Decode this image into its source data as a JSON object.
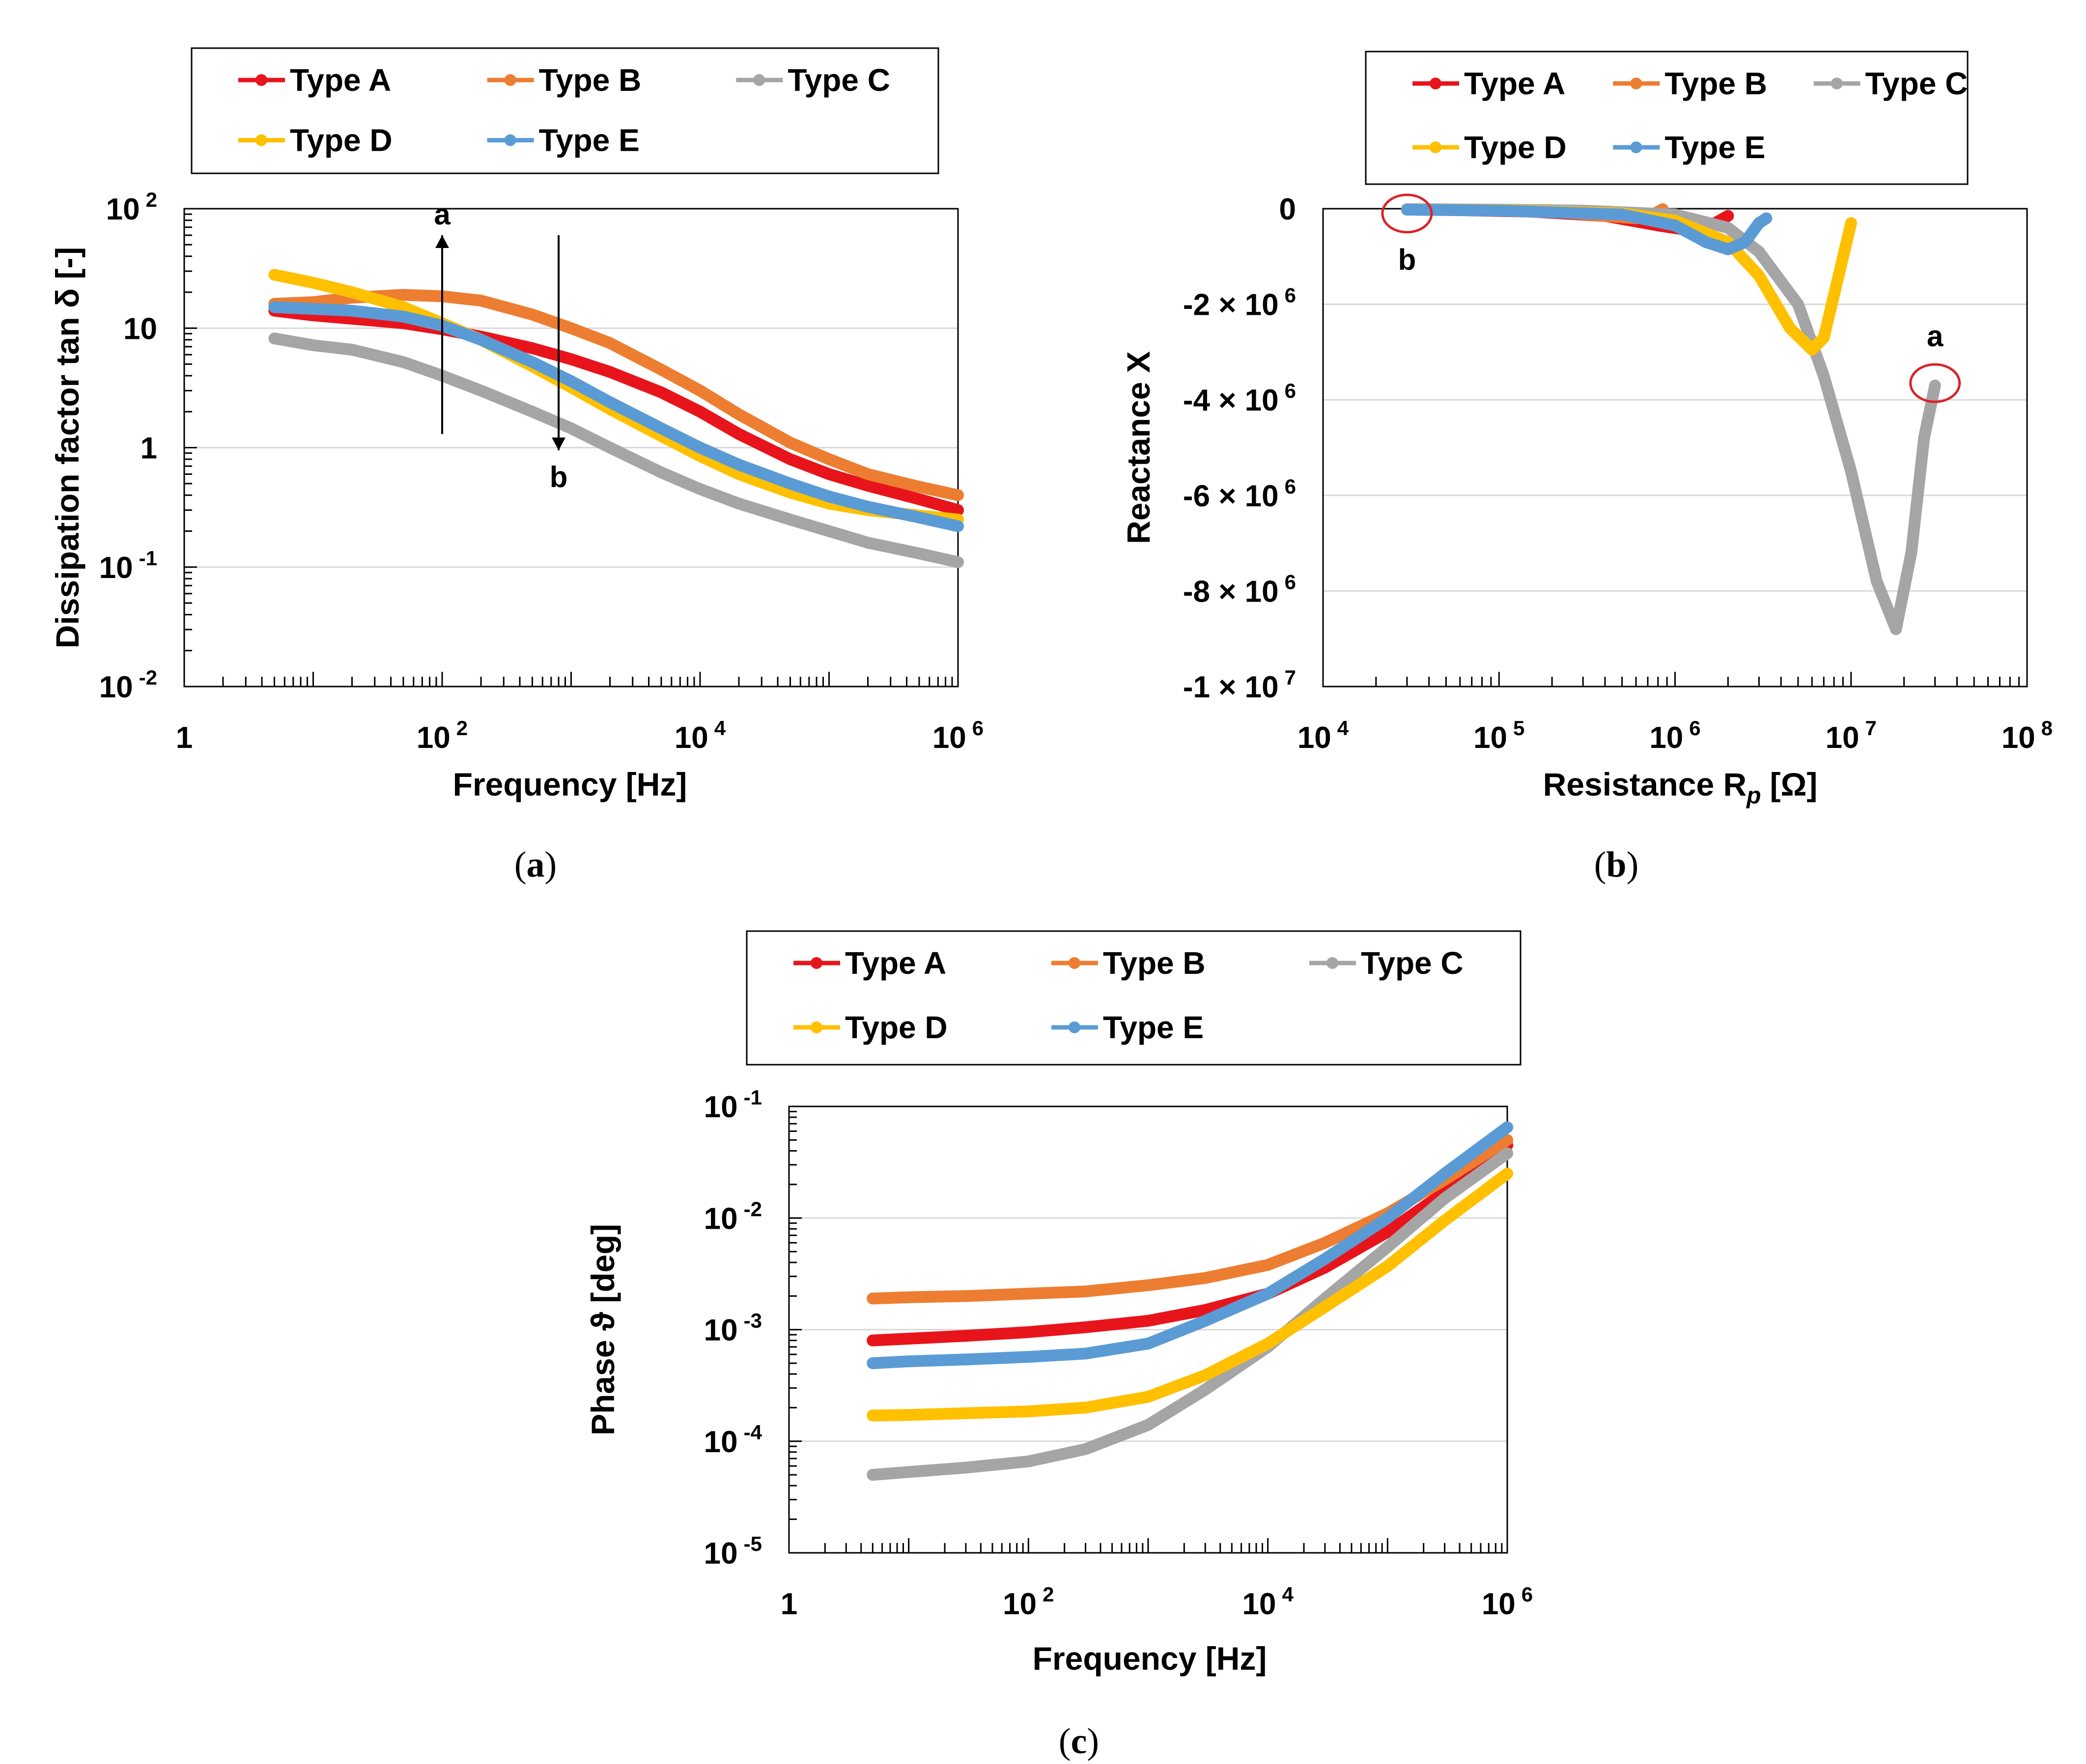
{
  "colors": {
    "Type A": "#e8141b",
    "Type B": "#ed7d31",
    "Type C": "#a5a5a5",
    "Type D": "#ffc000",
    "Type E": "#5b9bd5"
  },
  "legend_labels": [
    "Type A",
    "Type B",
    "Type C",
    "Type D",
    "Type E"
  ],
  "chart_data": [
    {
      "id": "a",
      "type": "line",
      "caption": "a",
      "xlabel": "Frequency   [Hz]",
      "ylabel": "Dissipation factor  tan δ  [-]",
      "xscale": "log",
      "yscale": "log",
      "xlim": [
        1,
        1000000
      ],
      "ylim": [
        0.01,
        100
      ],
      "x_ticks": [
        {
          "base": "1",
          "exp": ""
        },
        {
          "base": "10",
          "exp": "2"
        },
        {
          "base": "10",
          "exp": "4"
        },
        {
          "base": "10",
          "exp": "6"
        }
      ],
      "y_ticks": [
        {
          "base": "10",
          "exp": "-2"
        },
        {
          "base": "10",
          "exp": "-1"
        },
        {
          "base": "1",
          "exp": ""
        },
        {
          "base": "10",
          "exp": ""
        },
        {
          "base": "10",
          "exp": "2"
        }
      ],
      "grid": "horizontal",
      "legend_position": "top",
      "annotations": [
        {
          "text": "a",
          "direction": "up",
          "x": 100,
          "y_from": 1.3,
          "y_to": 60
        },
        {
          "text": "b",
          "direction": "down",
          "x": 800,
          "y_from": 60,
          "y_to": 0.95
        }
      ],
      "series": [
        {
          "name": "Type A",
          "x": [
            5,
            10,
            20,
            50,
            100,
            200,
            500,
            1000,
            2000,
            5000,
            10000,
            20000,
            50000,
            100000,
            200000,
            500000,
            1000000
          ],
          "y": [
            14,
            12.8,
            12,
            11,
            9.8,
            8.5,
            6.8,
            5.5,
            4.3,
            2.9,
            2.0,
            1.3,
            0.8,
            0.6,
            0.48,
            0.37,
            0.3
          ]
        },
        {
          "name": "Type B",
          "x": [
            5,
            10,
            20,
            50,
            100,
            200,
            500,
            1000,
            2000,
            5000,
            10000,
            20000,
            50000,
            100000,
            200000,
            500000,
            1000000
          ],
          "y": [
            16,
            16.5,
            18,
            19,
            18.5,
            17,
            13,
            10,
            7.5,
            4.5,
            3.0,
            1.9,
            1.1,
            0.8,
            0.6,
            0.47,
            0.4
          ]
        },
        {
          "name": "Type C",
          "x": [
            5,
            10,
            20,
            50,
            100,
            200,
            500,
            1000,
            2000,
            5000,
            10000,
            20000,
            50000,
            100000,
            200000,
            500000,
            1000000
          ],
          "y": [
            8.2,
            7.2,
            6.6,
            5.2,
            4.0,
            3.0,
            2.0,
            1.45,
            1.0,
            0.62,
            0.45,
            0.34,
            0.25,
            0.2,
            0.16,
            0.13,
            0.11
          ]
        },
        {
          "name": "Type D",
          "x": [
            5,
            10,
            20,
            50,
            100,
            200,
            500,
            1000,
            2000,
            5000,
            10000,
            20000,
            50000,
            100000,
            200000,
            500000,
            1000000
          ],
          "y": [
            28,
            24,
            20,
            15,
            11,
            8,
            4.8,
            3.2,
            2.1,
            1.25,
            0.85,
            0.6,
            0.42,
            0.34,
            0.3,
            0.27,
            0.25
          ]
        },
        {
          "name": "Type E",
          "x": [
            5,
            10,
            20,
            50,
            100,
            200,
            500,
            1000,
            2000,
            5000,
            10000,
            20000,
            50000,
            100000,
            200000,
            500000,
            1000000
          ],
          "y": [
            15,
            14.5,
            14,
            12.5,
            10.5,
            8,
            5.2,
            3.6,
            2.4,
            1.45,
            1.0,
            0.72,
            0.5,
            0.39,
            0.32,
            0.26,
            0.22
          ]
        }
      ]
    },
    {
      "id": "b",
      "type": "line",
      "caption": "b",
      "xlabel": "Resistance  R",
      "xlabel_sub": "p",
      "xlabel_unit": "[Ω]",
      "ylabel": "Reactance  X",
      "xscale": "log",
      "yscale": "linear",
      "xlim": [
        10000,
        100000000
      ],
      "ylim": [
        -10000000,
        0
      ],
      "x_ticks": [
        {
          "base": "10",
          "exp": "4"
        },
        {
          "base": "10",
          "exp": "5"
        },
        {
          "base": "10",
          "exp": "6"
        },
        {
          "base": "10",
          "exp": "7"
        },
        {
          "base": "10",
          "exp": "8"
        }
      ],
      "y_ticks": [
        {
          "base": "0",
          "exp": ""
        },
        {
          "base": "-2 × 10",
          "exp": "6"
        },
        {
          "base": "-4 × 10",
          "exp": "6"
        },
        {
          "base": "-6 × 10",
          "exp": "6"
        },
        {
          "base": "-8 × 10",
          "exp": "6"
        },
        {
          "base": "-1 × 10",
          "exp": "7"
        }
      ],
      "grid": "horizontal",
      "legend_position": "top",
      "annotations": [
        {
          "text": "a",
          "x": 30000000,
          "y": -3650000
        },
        {
          "text": "b",
          "x": 30000,
          "y": -100000
        }
      ],
      "series": [
        {
          "name": "Type A",
          "x": [
            30000,
            60000,
            150000,
            400000,
            800000,
            1200000,
            1600000,
            2000000
          ],
          "y": [
            -20000,
            -30000,
            -60000,
            -150000,
            -350000,
            -450000,
            -350000,
            -150000
          ]
        },
        {
          "name": "Type B",
          "x": [
            30000,
            80000,
            200000,
            400000,
            600000,
            750000,
            850000
          ],
          "y": [
            -20000,
            -30000,
            -60000,
            -150000,
            -200000,
            -120000,
            -10000
          ]
        },
        {
          "name": "Type C",
          "x": [
            30000,
            100000,
            300000,
            1000000,
            2000000,
            3000000,
            5000000,
            7000000,
            10000000,
            14000000,
            18000000,
            22000000,
            26000000,
            30000000
          ],
          "y": [
            -10000,
            -20000,
            -40000,
            -120000,
            -400000,
            -900000,
            -2000000,
            -3500000,
            -5500000,
            -7800000,
            -8800000,
            -7200000,
            -4800000,
            -3700000
          ]
        },
        {
          "name": "Type D",
          "x": [
            30000,
            100000,
            500000,
            1000000,
            2000000,
            3000000,
            4500000,
            6000000,
            7000000,
            8500000,
            10000000
          ],
          "y": [
            -20000,
            -30000,
            -100000,
            -250000,
            -700000,
            -1400000,
            -2500000,
            -2950000,
            -2700000,
            -1400000,
            -300000
          ]
        },
        {
          "name": "Type E",
          "x": [
            30000,
            100000,
            500000,
            1000000,
            1500000,
            2000000,
            2500000,
            3000000,
            3300000
          ],
          "y": [
            -20000,
            -40000,
            -120000,
            -350000,
            -700000,
            -850000,
            -700000,
            -300000,
            -200000
          ]
        }
      ]
    },
    {
      "id": "c",
      "type": "line",
      "caption": "c",
      "xlabel": "Frequency   [Hz]",
      "ylabel": "Phase  ϑ  [deg]",
      "xscale": "log",
      "yscale": "log",
      "xlim": [
        1,
        1000000
      ],
      "ylim": [
        1e-05,
        0.1
      ],
      "x_ticks": [
        {
          "base": "1",
          "exp": ""
        },
        {
          "base": "10",
          "exp": "2"
        },
        {
          "base": "10",
          "exp": "4"
        },
        {
          "base": "10",
          "exp": "6"
        }
      ],
      "y_ticks": [
        {
          "base": "10",
          "exp": "-5"
        },
        {
          "base": "10",
          "exp": "-4"
        },
        {
          "base": "10",
          "exp": "-3"
        },
        {
          "base": "10",
          "exp": "-2"
        },
        {
          "base": "10",
          "exp": "-1"
        }
      ],
      "grid": "horizontal",
      "legend_position": "top",
      "series": [
        {
          "name": "Type A",
          "x": [
            5,
            10,
            30,
            100,
            300,
            1000,
            3000,
            10000,
            30000,
            100000,
            300000,
            1000000
          ],
          "y": [
            0.0008,
            0.00083,
            0.00088,
            0.00095,
            0.00105,
            0.0012,
            0.0015,
            0.0021,
            0.0036,
            0.0075,
            0.017,
            0.045
          ]
        },
        {
          "name": "Type B",
          "x": [
            5,
            10,
            30,
            100,
            300,
            1000,
            3000,
            10000,
            30000,
            100000,
            300000,
            1000000
          ],
          "y": [
            0.0019,
            0.00195,
            0.002,
            0.0021,
            0.0022,
            0.0025,
            0.0029,
            0.0038,
            0.006,
            0.011,
            0.022,
            0.05
          ]
        },
        {
          "name": "Type C",
          "x": [
            5,
            10,
            30,
            100,
            300,
            1000,
            3000,
            10000,
            30000,
            100000,
            300000,
            1000000
          ],
          "y": [
            5e-05,
            5.3e-05,
            5.8e-05,
            6.6e-05,
            8.5e-05,
            0.00014,
            0.00029,
            0.0007,
            0.0019,
            0.0055,
            0.015,
            0.038
          ]
        },
        {
          "name": "Type D",
          "x": [
            5,
            10,
            30,
            100,
            300,
            1000,
            3000,
            10000,
            30000,
            100000,
            300000,
            1000000
          ],
          "y": [
            0.00017,
            0.000172,
            0.000178,
            0.000185,
            0.0002,
            0.00025,
            0.00039,
            0.00075,
            0.0016,
            0.0037,
            0.0095,
            0.025
          ]
        },
        {
          "name": "Type E",
          "x": [
            5,
            10,
            30,
            100,
            300,
            1000,
            3000,
            10000,
            30000,
            100000,
            300000,
            1000000
          ],
          "y": [
            0.0005,
            0.00052,
            0.00054,
            0.00057,
            0.00061,
            0.00075,
            0.0012,
            0.0021,
            0.0043,
            0.01,
            0.025,
            0.065
          ]
        }
      ]
    }
  ]
}
